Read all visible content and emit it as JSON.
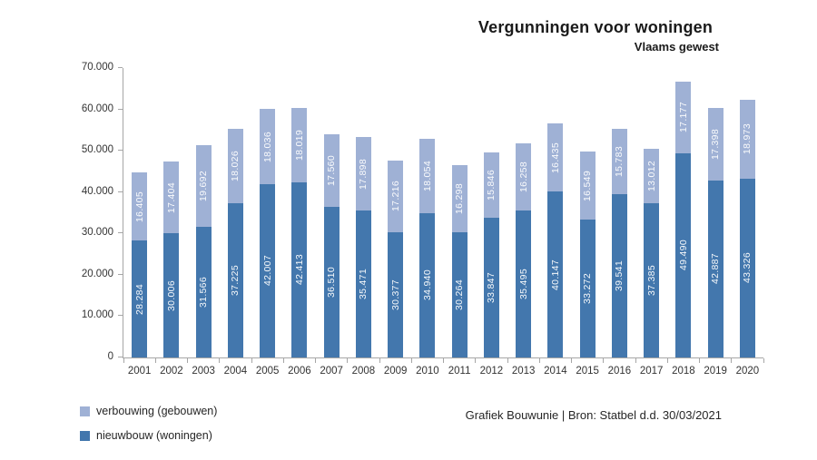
{
  "chart": {
    "title": "Vergunningen voor woningen",
    "subtitle": "Vlaams gewest"
  },
  "chart_data": {
    "type": "bar",
    "stacked": true,
    "title": "Vergunningen voor woningen",
    "subtitle": "Vlaams gewest",
    "xlabel": "",
    "ylabel": "",
    "ylim": [
      0,
      70000
    ],
    "y_tick_step": 10000,
    "y_tick_labels": [
      "0",
      "10.000",
      "20.000",
      "30.000",
      "40.000",
      "50.000",
      "60.000",
      "70.000"
    ],
    "grid": false,
    "legend_position": "bottom-left",
    "categories": [
      "2001",
      "2002",
      "2003",
      "2004",
      "2005",
      "2006",
      "2007",
      "2008",
      "2009",
      "2010",
      "2011",
      "2012",
      "2013",
      "2014",
      "2015",
      "2016",
      "2017",
      "2018",
      "2019",
      "2020"
    ],
    "series": [
      {
        "name": "nieuwbouw (woningen)",
        "color": "#4377AD",
        "values": [
          28284,
          30006,
          31566,
          37225,
          42007,
          42413,
          36510,
          35471,
          30377,
          34940,
          30264,
          33847,
          35495,
          40147,
          33272,
          39541,
          37385,
          49490,
          42887,
          43326
        ],
        "labels": [
          "28.284",
          "30.006",
          "31.566",
          "37.225",
          "42.007",
          "42.413",
          "36.510",
          "35.471",
          "30.377",
          "34.940",
          "30.264",
          "33.847",
          "35.495",
          "40.147",
          "33.272",
          "39.541",
          "37.385",
          "49.490",
          "42.887",
          "43.326"
        ]
      },
      {
        "name": "verbouwing (gebouwen)",
        "color": "#9FB1D5",
        "values": [
          16405,
          17404,
          19692,
          18026,
          18036,
          18019,
          17560,
          17898,
          17216,
          18054,
          16298,
          15846,
          16258,
          16435,
          16549,
          15783,
          13012,
          17177,
          17398,
          18973
        ],
        "labels": [
          "16.405",
          "17.404",
          "19.692",
          "18.026",
          "18.036",
          "18.019",
          "17.560",
          "17.898",
          "17.216",
          "18.054",
          "16.298",
          "15.846",
          "16.258",
          "16.435",
          "16.549",
          "15.783",
          "13.012",
          "17.177",
          "17.398",
          "18.973"
        ]
      }
    ],
    "bar_label_color": "#ffffff",
    "axis_color": "#a6a6a6"
  },
  "legend": {
    "items": [
      {
        "label": "verbouwing (gebouwen)",
        "color": "#9FB1D5"
      },
      {
        "label": "nieuwbouw (woningen)",
        "color": "#4377AD"
      }
    ]
  },
  "footer": {
    "source": "Grafiek Bouwunie | Bron: Statbel d.d. 30/03/2021"
  }
}
